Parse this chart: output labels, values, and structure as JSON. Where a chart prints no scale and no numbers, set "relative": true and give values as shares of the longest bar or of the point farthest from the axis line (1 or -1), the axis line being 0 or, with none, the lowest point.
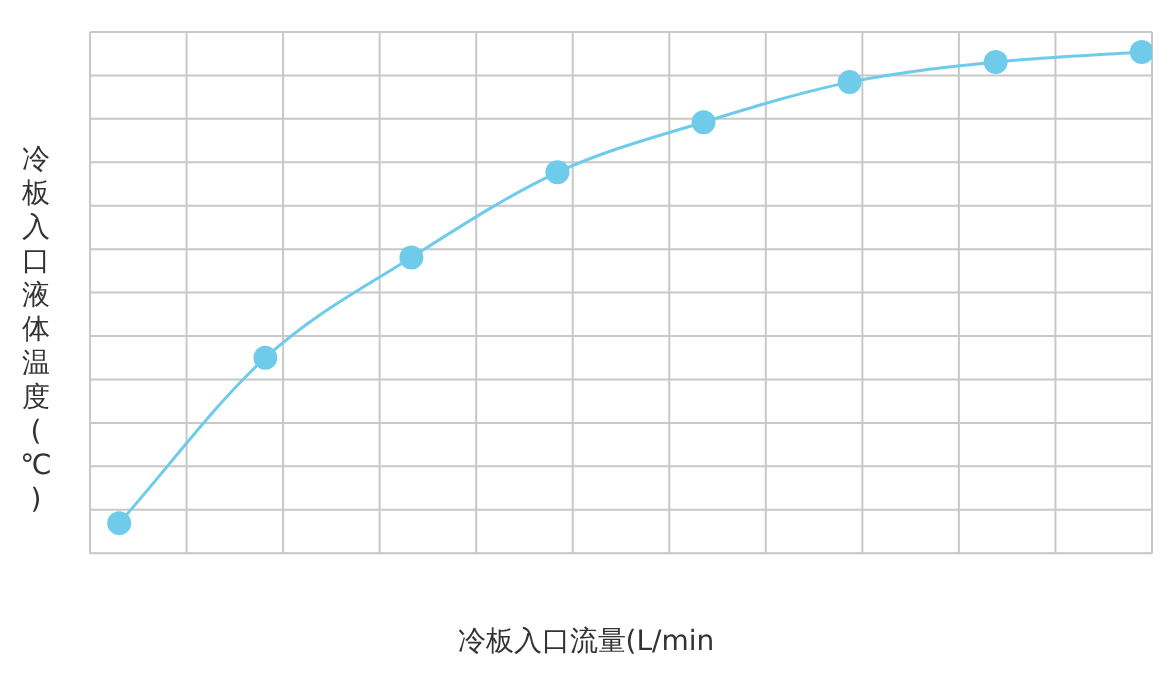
{
  "chart_data": {
    "type": "line",
    "xlabel": "冷板入口流量(L/min",
    "ylabel": "冷板入口液体温度(℃)",
    "relative": true,
    "categories": [
      null,
      null,
      null,
      null,
      null,
      null,
      null,
      null
    ],
    "series": [
      {
        "color": "#6ecbea",
        "values": [
          0.06,
          0.39,
          0.59,
          0.76,
          0.86,
          0.94,
          0.98,
          1
        ]
      }
    ],
    "grid": true,
    "legend": false,
    "marker": "circle"
  }
}
